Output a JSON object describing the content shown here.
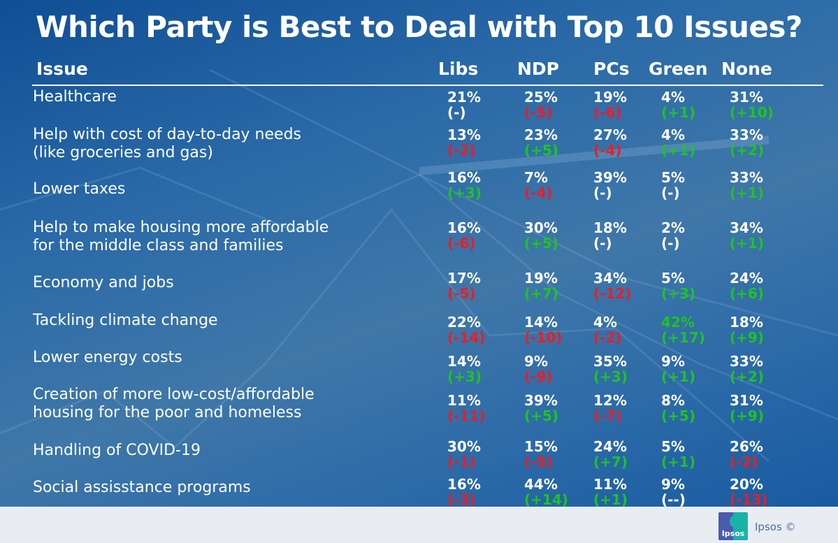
{
  "title": "Which Party is Best to Deal with Top 10 Issues?",
  "colors": {
    "positive": "#1ec51e",
    "negative": "#ee1c24",
    "neutral": "#ffffff",
    "background": "#2a6aa8"
  },
  "chart_data": {
    "type": "table",
    "title": "Which Party is Best to Deal with Top 10 Issues?",
    "columns": [
      "Issue",
      "Libs",
      "NDP",
      "PCs",
      "Green",
      "None"
    ],
    "rows": [
      {
        "issue": [
          "Healthcare"
        ],
        "cells": [
          [
            "21%",
            "(-)"
          ],
          [
            "25%",
            "(-5)"
          ],
          [
            "19%",
            "(-6)"
          ],
          [
            "4%",
            "(+1)"
          ],
          [
            "31%",
            "(+10)"
          ]
        ]
      },
      {
        "issue": [
          "Help with cost of day-to-day needs",
          "(like groceries and gas)"
        ],
        "cells": [
          [
            "13%",
            "(-2)"
          ],
          [
            "23%",
            "(+5)"
          ],
          [
            "27%",
            "(-4)"
          ],
          [
            "4%",
            "(+1)"
          ],
          [
            "33%",
            "(+2)"
          ]
        ]
      },
      {
        "issue": [
          "Lower taxes"
        ],
        "cells": [
          [
            "16%",
            "(+3)"
          ],
          [
            "7%",
            "(-4)"
          ],
          [
            "39%",
            "(-)"
          ],
          [
            "5%",
            "(-)"
          ],
          [
            "33%",
            "(+1)"
          ]
        ]
      },
      {
        "issue": [
          "Help to make housing more affordable",
          "for the middle class and families"
        ],
        "cells": [
          [
            "16%",
            "(-6)"
          ],
          [
            "30%",
            "(+5)"
          ],
          [
            "18%",
            "(-)"
          ],
          [
            "2%",
            "(-)"
          ],
          [
            "34%",
            "(+1)"
          ]
        ]
      },
      {
        "issue": [
          "Economy and jobs"
        ],
        "cells": [
          [
            "17%",
            "(-5)"
          ],
          [
            "19%",
            "(+7)"
          ],
          [
            "34%",
            "(-12)"
          ],
          [
            "5%",
            "(+3)"
          ],
          [
            "24%",
            "(+6)"
          ]
        ]
      },
      {
        "issue": [
          "Tackling climate change"
        ],
        "cells": [
          [
            "22%",
            "(-14)"
          ],
          [
            "14%",
            "(-10)"
          ],
          [
            "4%",
            "(-2)"
          ],
          [
            "42%",
            "(+17)"
          ],
          [
            "18%",
            "(+9)"
          ]
        ],
        "highlight": "Green"
      },
      {
        "issue": [
          "Lower energy costs"
        ],
        "cells": [
          [
            "14%",
            "(+3)"
          ],
          [
            "9%",
            "(-9)"
          ],
          [
            "35%",
            "(+3)"
          ],
          [
            "9%",
            "(+1)"
          ],
          [
            "33%",
            "(+2)"
          ]
        ]
      },
      {
        "issue": [
          "Creation of more low-cost/affordable",
          "housing for the poor and homeless"
        ],
        "cells": [
          [
            "11%",
            "(-11)"
          ],
          [
            "39%",
            "(+5)"
          ],
          [
            "12%",
            "(-7)"
          ],
          [
            "8%",
            "(+5)"
          ],
          [
            "31%",
            "(+9)"
          ]
        ]
      },
      {
        "issue": [
          "Handling of COVID-19"
        ],
        "cells": [
          [
            "30%",
            "(-1)"
          ],
          [
            "15%",
            "(-5)"
          ],
          [
            "24%",
            "(+7)"
          ],
          [
            "5%",
            "(+1)"
          ],
          [
            "26%",
            "(-2)"
          ]
        ]
      },
      {
        "issue": [
          "Social assisstance programs"
        ],
        "cells": [
          [
            "16%",
            "(-3)"
          ],
          [
            "44%",
            "(+14)"
          ],
          [
            "11%",
            "(+1)"
          ],
          [
            "9%",
            "(--)"
          ],
          [
            "20%",
            "(-13)"
          ]
        ]
      }
    ]
  },
  "footer": {
    "brand": "Ipsos ©",
    "logo_text": "Ipsos"
  }
}
